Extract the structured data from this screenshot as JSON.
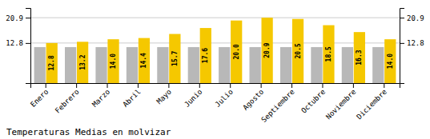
{
  "chart_data": {
    "type": "bar",
    "title": "Temperaturas Medias en molvizar",
    "categories": [
      "Enero",
      "Febrero",
      "Marzo",
      "Abril",
      "Mayo",
      "Junio",
      "Julio",
      "Agosto",
      "Septiembre",
      "Octubre",
      "Noviembre",
      "Diciembre"
    ],
    "series": [
      {
        "color": "#B8B8B8",
        "values": [
          11.5,
          11.5,
          11.5,
          11.5,
          11.5,
          11.5,
          11.5,
          11.5,
          11.5,
          11.5,
          11.5,
          11.5
        ]
      },
      {
        "color": "#F5C800",
        "values": [
          12.8,
          13.2,
          14.0,
          14.4,
          15.7,
          17.6,
          20.0,
          20.9,
          20.5,
          18.5,
          16.3,
          14.0
        ],
        "value_labels": [
          "12.8",
          "13.2",
          "14.0",
          "14.4",
          "15.7",
          "17.6",
          "20.0",
          "20.9",
          "20.5",
          "18.5",
          "16.3",
          "14.0"
        ],
        "data_labels": true
      }
    ],
    "ylim": [
      0,
      24.0
    ],
    "yticks": [
      12.8,
      20.9
    ],
    "y2lim": [
      0,
      24.0
    ],
    "y2ticks": [
      12.8,
      20.9
    ],
    "grid": true
  }
}
